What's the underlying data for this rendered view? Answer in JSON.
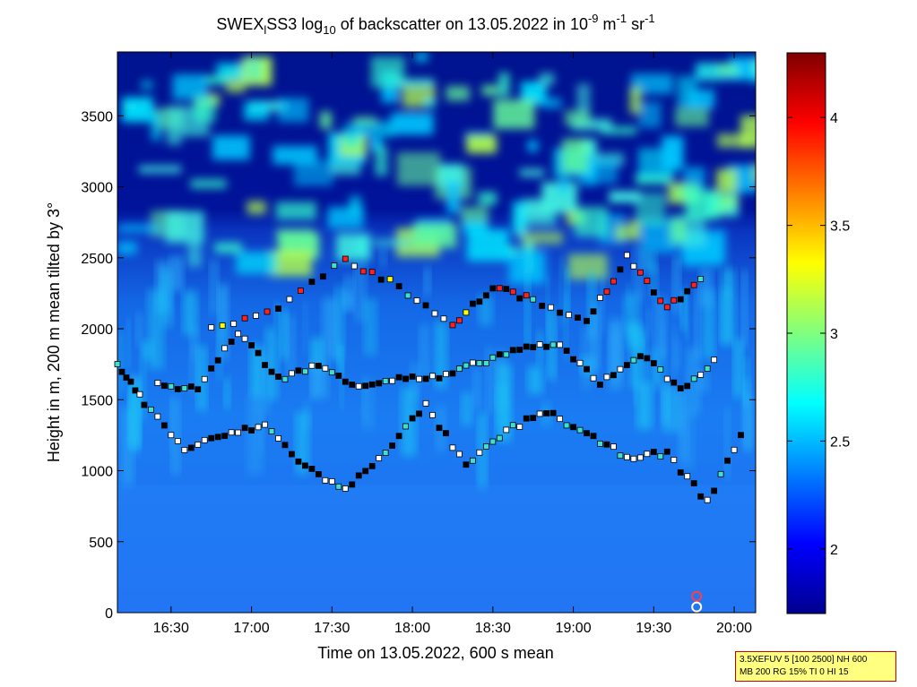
{
  "chart_data": {
    "type": "heatmap",
    "title": {
      "prefix": "SWEX",
      "sub_l": "l",
      "part2": "SS3 log",
      "sub_10": "10",
      "part3": " of backscatter on 13.05.2022 in 10",
      "sup_m9": "-9",
      "part4": " m",
      "sup_m1a": "-1",
      "part5": " sr",
      "sup_m1b": "-1"
    },
    "xlabel": "Time on 13.05.2022, 600 s mean",
    "ylabel": "Height in m, 200 m mean tilted by 3°",
    "xlim": [
      "16:10",
      "20:08"
    ],
    "ylim": [
      0,
      3950
    ],
    "x_ticks": [
      "16:30",
      "17:00",
      "17:30",
      "18:00",
      "18:30",
      "19:00",
      "19:30",
      "20:00"
    ],
    "y_ticks": [
      0,
      500,
      1000,
      1500,
      2000,
      2500,
      3000,
      3500
    ],
    "colorbar": {
      "range": [
        1.7,
        4.3
      ],
      "ticks": [
        2,
        2.5,
        3,
        3.5,
        4
      ],
      "colormap": "jet"
    },
    "layers": [
      {
        "times": [
          "16:10",
          "16:20",
          "16:35",
          "16:50",
          "17:05",
          "17:20",
          "17:35",
          "17:50",
          "18:05",
          "18:20",
          "18:35",
          "18:50",
          "19:05",
          "19:20",
          "19:35",
          "19:50",
          "20:05"
        ],
        "heights": [
          1750,
          1480,
          1150,
          1250,
          1320,
          1030,
          860,
          1140,
          1460,
          1030,
          1280,
          1420,
          1250,
          1100,
          1120,
          780,
          1350
        ]
      },
      {
        "times": [
          "16:25",
          "16:40",
          "16:55",
          "17:10",
          "17:25",
          "17:40",
          "17:55",
          "18:10",
          "18:25",
          "18:40",
          "18:55",
          "19:10",
          "19:25",
          "19:40",
          "19:55"
        ],
        "heights": [
          1600,
          1580,
          1980,
          1650,
          1740,
          1600,
          1650,
          1650,
          1760,
          1860,
          1880,
          1620,
          1820,
          1580,
          1800
        ]
      },
      {
        "times": [
          "16:45",
          "17:10",
          "17:35",
          "17:55",
          "18:15",
          "18:30",
          "18:45",
          "19:05",
          "19:20",
          "19:35",
          "19:50"
        ],
        "heights": [
          2000,
          2150,
          2480,
          2300,
          2020,
          2300,
          2200,
          2050,
          2500,
          2150,
          2380
        ]
      }
    ],
    "surface_marks": [
      {
        "time": "19:46",
        "height": 115,
        "shape": "ring",
        "color": "#ff4040"
      },
      {
        "time": "19:46",
        "height": 40,
        "shape": "ring",
        "color": "#ffffff"
      }
    ]
  },
  "info_box": {
    "line1": "3.5XEFUV 5 [100 2500] NH 600",
    "line2": "MB 200 RG 15% TI 0 HI 15"
  }
}
